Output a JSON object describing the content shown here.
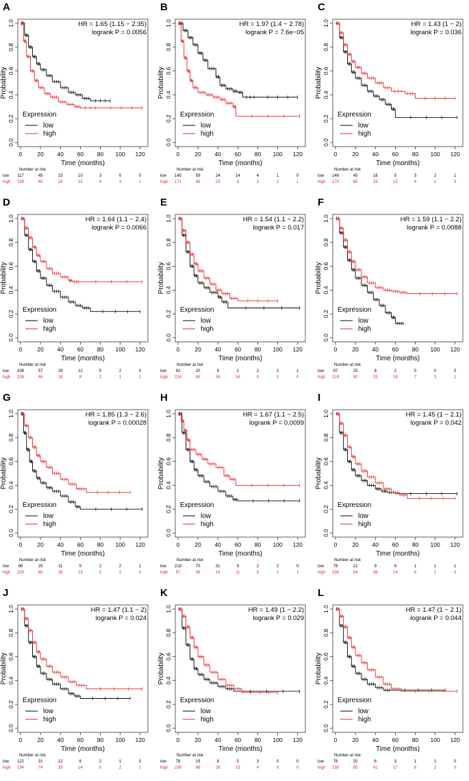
{
  "figure": {
    "axis": {
      "ylabel": "Probability",
      "xlabel": "Time (months)",
      "xticks": [
        0,
        20,
        40,
        60,
        80,
        100,
        120
      ],
      "yticks": [
        "0.0",
        "0.2",
        "0.4",
        "0.6",
        "0.8",
        "1.0"
      ],
      "xlim": [
        0,
        125
      ],
      "ylim": [
        0,
        1
      ]
    },
    "legend": {
      "title": "Expression",
      "low": "low",
      "high": "high"
    },
    "risk_title": "Number at risk",
    "colors": {
      "low": "#000000",
      "high": "#e8262a",
      "axis": "#333333"
    }
  },
  "chart_data": [
    {
      "type": "line",
      "panel": "A",
      "hr": "HR = 1.65 (1.15 − 2.35)",
      "p": "logrank P = 0.0056",
      "series": [
        {
          "name": "low",
          "x": [
            0,
            4,
            8,
            12,
            16,
            20,
            26,
            32,
            40,
            48,
            55,
            62,
            70,
            90
          ],
          "values": [
            1,
            0.9,
            0.8,
            0.72,
            0.66,
            0.61,
            0.56,
            0.51,
            0.46,
            0.42,
            0.4,
            0.37,
            0.35,
            0.35
          ]
        },
        {
          "name": "high",
          "x": [
            0,
            3,
            6,
            10,
            14,
            18,
            24,
            30,
            38,
            46,
            54,
            60,
            80,
            122
          ],
          "values": [
            1,
            0.85,
            0.72,
            0.6,
            0.52,
            0.46,
            0.41,
            0.38,
            0.34,
            0.32,
            0.3,
            0.29,
            0.29,
            0.29
          ]
        }
      ],
      "risk": {
        "low": [
          "117",
          "45",
          "23",
          "10",
          "3",
          "0",
          "0"
        ],
        "high": [
          "199",
          "60",
          "24",
          "10",
          "4",
          "3",
          "1"
        ]
      }
    },
    {
      "type": "line",
      "panel": "B",
      "hr": "HR = 1.97 (1.4 − 2.78)",
      "p": "logrank P = 7.6e−05",
      "series": [
        {
          "name": "low",
          "x": [
            0,
            5,
            10,
            15,
            20,
            25,
            30,
            38,
            42,
            48,
            55,
            60,
            65,
            80,
            120
          ],
          "values": [
            1,
            0.94,
            0.88,
            0.82,
            0.75,
            0.69,
            0.62,
            0.55,
            0.48,
            0.45,
            0.43,
            0.42,
            0.38,
            0.38,
            0.38
          ]
        },
        {
          "name": "high",
          "x": [
            0,
            3,
            6,
            9,
            12,
            15,
            20,
            28,
            35,
            42,
            48,
            55,
            58,
            122
          ],
          "values": [
            1,
            0.85,
            0.71,
            0.6,
            0.52,
            0.46,
            0.42,
            0.4,
            0.38,
            0.36,
            0.33,
            0.3,
            0.22,
            0.22
          ]
        }
      ],
      "risk": {
        "low": [
          "145",
          "59",
          "24",
          "14",
          "4",
          "1",
          "0"
        ],
        "high": [
          "171",
          "46",
          "23",
          "6",
          "3",
          "2",
          "1"
        ]
      }
    },
    {
      "type": "line",
      "panel": "C",
      "hr": "HR = 1.43 (1 − 2)",
      "p": "logrank P = 0.036",
      "series": [
        {
          "name": "low",
          "x": [
            0,
            4,
            8,
            12,
            16,
            20,
            26,
            32,
            38,
            44,
            50,
            56,
            60,
            122
          ],
          "values": [
            1,
            0.88,
            0.76,
            0.66,
            0.59,
            0.54,
            0.48,
            0.43,
            0.39,
            0.36,
            0.32,
            0.28,
            0.21,
            0.21
          ]
        },
        {
          "name": "high",
          "x": [
            0,
            4,
            8,
            12,
            16,
            20,
            26,
            32,
            40,
            48,
            56,
            70,
            80,
            120
          ],
          "values": [
            1,
            0.92,
            0.82,
            0.74,
            0.68,
            0.63,
            0.58,
            0.54,
            0.5,
            0.46,
            0.43,
            0.41,
            0.37,
            0.37
          ]
        }
      ],
      "risk": {
        "low": [
          "146",
          "45",
          "18",
          "5",
          "3",
          "2",
          "1"
        ],
        "high": [
          "170",
          "60",
          "29",
          "15",
          "4",
          "1",
          "0"
        ]
      }
    },
    {
      "type": "line",
      "panel": "D",
      "hr": "HR = 1.64 (1.1 − 2.4)",
      "p": "logrank P = 0.0066",
      "series": [
        {
          "name": "low",
          "x": [
            0,
            4,
            8,
            12,
            16,
            20,
            26,
            32,
            40,
            48,
            55,
            62,
            70,
            120
          ],
          "values": [
            1,
            0.86,
            0.74,
            0.64,
            0.56,
            0.5,
            0.44,
            0.39,
            0.34,
            0.3,
            0.27,
            0.25,
            0.22,
            0.22
          ]
        },
        {
          "name": "high",
          "x": [
            0,
            4,
            8,
            12,
            16,
            20,
            26,
            32,
            40,
            48,
            52,
            60,
            122
          ],
          "values": [
            1,
            0.92,
            0.84,
            0.76,
            0.69,
            0.64,
            0.58,
            0.54,
            0.51,
            0.48,
            0.47,
            0.47,
            0.47
          ]
        }
      ],
      "risk": {
        "low": [
          "208",
          "57",
          "29",
          "12",
          "5",
          "2",
          "0"
        ],
        "high": [
          "108",
          "48",
          "18",
          "8",
          "2",
          "1",
          "1"
        ]
      }
    },
    {
      "type": "line",
      "panel": "E",
      "hr": "HR = 1.54 (1.1 − 2.2)",
      "p": "logrank P = 0.017",
      "series": [
        {
          "name": "low",
          "x": [
            0,
            4,
            8,
            12,
            16,
            20,
            26,
            32,
            40,
            44,
            50,
            122
          ],
          "values": [
            1,
            0.86,
            0.72,
            0.6,
            0.52,
            0.46,
            0.42,
            0.38,
            0.34,
            0.3,
            0.25,
            0.25
          ]
        },
        {
          "name": "high",
          "x": [
            0,
            4,
            8,
            12,
            16,
            20,
            26,
            32,
            38,
            44,
            52,
            60,
            100
          ],
          "values": [
            1,
            0.9,
            0.8,
            0.7,
            0.62,
            0.56,
            0.5,
            0.45,
            0.4,
            0.37,
            0.33,
            0.31,
            0.31
          ]
        }
      ],
      "risk": {
        "low": [
          "92",
          "20",
          "9",
          "2",
          "2",
          "2",
          "1"
        ],
        "high": [
          "224",
          "85",
          "38",
          "16",
          "5",
          "1",
          "0"
        ]
      }
    },
    {
      "type": "line",
      "panel": "F",
      "hr": "HR = 1.59 (1.1 − 2.2)",
      "p": "logrank P = 0.0088",
      "series": [
        {
          "name": "low",
          "x": [
            0,
            4,
            8,
            12,
            16,
            20,
            26,
            32,
            38,
            44,
            50,
            56,
            60,
            68
          ],
          "values": [
            1,
            0.88,
            0.76,
            0.65,
            0.57,
            0.5,
            0.44,
            0.38,
            0.32,
            0.27,
            0.21,
            0.17,
            0.12,
            0.12
          ]
        },
        {
          "name": "high",
          "x": [
            0,
            4,
            8,
            12,
            16,
            20,
            26,
            32,
            40,
            48,
            56,
            64,
            72,
            122
          ],
          "values": [
            1,
            0.92,
            0.82,
            0.72,
            0.64,
            0.57,
            0.51,
            0.46,
            0.42,
            0.4,
            0.39,
            0.38,
            0.37,
            0.37
          ]
        }
      ],
      "risk": {
        "low": [
          "97",
          "25",
          "8",
          "2",
          "0",
          "0",
          "0"
        ],
        "high": [
          "219",
          "80",
          "29",
          "18",
          "7",
          "3",
          "1"
        ]
      }
    },
    {
      "type": "line",
      "panel": "G",
      "hr": "HR = 1.85 (1.3 − 2.6)",
      "p": "logrank P = 0.00028",
      "series": [
        {
          "name": "low",
          "x": [
            0,
            3,
            6,
            9,
            12,
            16,
            20,
            26,
            32,
            40,
            48,
            55,
            60,
            122
          ],
          "values": [
            1,
            0.84,
            0.7,
            0.6,
            0.52,
            0.46,
            0.42,
            0.38,
            0.35,
            0.31,
            0.26,
            0.22,
            0.2,
            0.2
          ]
        },
        {
          "name": "high",
          "x": [
            0,
            4,
            8,
            12,
            16,
            20,
            26,
            32,
            40,
            48,
            56,
            66,
            110
          ],
          "values": [
            1,
            0.9,
            0.8,
            0.72,
            0.65,
            0.6,
            0.55,
            0.5,
            0.45,
            0.41,
            0.37,
            0.34,
            0.34
          ]
        }
      ],
      "risk": {
        "low": [
          "96",
          "25",
          "11",
          "5",
          "2",
          "2",
          "1"
        ],
        "high": [
          "220",
          "80",
          "36",
          "15",
          "5",
          "1",
          "0"
        ]
      }
    },
    {
      "type": "line",
      "panel": "H",
      "hr": "HR = 1.67 (1.1 − 2.5)",
      "p": "logrank P = 0.0099",
      "series": [
        {
          "name": "low",
          "x": [
            0,
            4,
            8,
            12,
            16,
            20,
            26,
            32,
            40,
            48,
            55,
            60,
            122
          ],
          "values": [
            1,
            0.84,
            0.7,
            0.6,
            0.53,
            0.48,
            0.43,
            0.39,
            0.35,
            0.31,
            0.28,
            0.27,
            0.27
          ]
        },
        {
          "name": "high",
          "x": [
            0,
            3,
            6,
            9,
            12,
            18,
            24,
            30,
            38,
            46,
            52,
            58,
            122
          ],
          "values": [
            1,
            0.94,
            0.86,
            0.78,
            0.7,
            0.66,
            0.62,
            0.58,
            0.55,
            0.48,
            0.45,
            0.4,
            0.4
          ]
        }
      ],
      "risk": {
        "low": [
          "219",
          "70",
          "31",
          "9",
          "2",
          "2",
          "0"
        ],
        "high": [
          "97",
          "35",
          "16",
          "11",
          "5",
          "1",
          "1"
        ]
      }
    },
    {
      "type": "line",
      "panel": "I",
      "hr": "HR = 1.45 (1 − 2.1)",
      "p": "logrank P = 0.042",
      "series": [
        {
          "name": "low",
          "x": [
            0,
            4,
            8,
            12,
            16,
            20,
            26,
            32,
            40,
            46,
            52,
            60,
            122
          ],
          "values": [
            1,
            0.84,
            0.7,
            0.6,
            0.53,
            0.48,
            0.44,
            0.4,
            0.37,
            0.35,
            0.34,
            0.33,
            0.33
          ]
        },
        {
          "name": "high",
          "x": [
            0,
            4,
            8,
            12,
            16,
            20,
            26,
            32,
            40,
            48,
            56,
            64,
            72,
            120
          ],
          "values": [
            1,
            0.92,
            0.82,
            0.72,
            0.64,
            0.58,
            0.52,
            0.47,
            0.42,
            0.37,
            0.34,
            0.32,
            0.29,
            0.29
          ]
        }
      ],
      "risk": {
        "low": [
          "78",
          "21",
          "9",
          "6",
          "1",
          "1",
          "1"
        ],
        "high": [
          "238",
          "84",
          "38",
          "14",
          "6",
          "2",
          "0"
        ]
      }
    },
    {
      "type": "line",
      "panel": "J",
      "hr": "HR = 1.47 (1.1 − 2)",
      "p": "logrank P = 0.024",
      "series": [
        {
          "name": "low",
          "x": [
            0,
            4,
            8,
            12,
            16,
            20,
            26,
            32,
            40,
            48,
            54,
            60,
            110
          ],
          "values": [
            1,
            0.86,
            0.72,
            0.6,
            0.52,
            0.46,
            0.41,
            0.37,
            0.33,
            0.29,
            0.27,
            0.25,
            0.25
          ]
        },
        {
          "name": "high",
          "x": [
            0,
            4,
            8,
            12,
            16,
            20,
            26,
            32,
            40,
            48,
            56,
            66,
            122
          ],
          "values": [
            1,
            0.92,
            0.82,
            0.72,
            0.64,
            0.58,
            0.52,
            0.47,
            0.43,
            0.39,
            0.36,
            0.33,
            0.33
          ]
        }
      ],
      "risk": {
        "low": [
          "122",
          "31",
          "12",
          "6",
          "2",
          "1",
          "0"
        ],
        "high": [
          "194",
          "74",
          "35",
          "14",
          "5",
          "2",
          "1"
        ]
      }
    },
    {
      "type": "line",
      "panel": "K",
      "hr": "HR = 1.49 (1 − 2.2)",
      "p": "logrank P = 0.029",
      "series": [
        {
          "name": "low",
          "x": [
            0,
            4,
            8,
            12,
            16,
            20,
            26,
            32,
            40,
            48,
            56,
            122
          ],
          "values": [
            1,
            0.84,
            0.7,
            0.58,
            0.5,
            0.45,
            0.41,
            0.38,
            0.35,
            0.33,
            0.31,
            0.31
          ]
        },
        {
          "name": "high",
          "x": [
            0,
            4,
            8,
            12,
            16,
            20,
            26,
            32,
            40,
            48,
            56,
            64,
            100
          ],
          "values": [
            1,
            0.94,
            0.85,
            0.76,
            0.68,
            0.6,
            0.53,
            0.47,
            0.41,
            0.36,
            0.33,
            0.3,
            0.3
          ]
        }
      ],
      "risk": {
        "low": [
          "78",
          "19",
          "8",
          "5",
          "3",
          "0",
          "0"
        ],
        "high": [
          "238",
          "86",
          "39",
          "15",
          "4",
          "0",
          "0"
        ]
      }
    },
    {
      "type": "line",
      "panel": "L",
      "hr": "HR = 1.47 (1 − 2.1)",
      "p": "logrank P = 0.044",
      "series": [
        {
          "name": "low",
          "x": [
            0,
            4,
            8,
            12,
            16,
            20,
            26,
            32,
            40,
            48,
            56,
            110
          ],
          "values": [
            1,
            0.86,
            0.72,
            0.6,
            0.52,
            0.46,
            0.41,
            0.37,
            0.34,
            0.32,
            0.32,
            0.32
          ]
        },
        {
          "name": "high",
          "x": [
            0,
            4,
            8,
            12,
            16,
            20,
            26,
            32,
            40,
            48,
            56,
            66,
            122
          ],
          "values": [
            1,
            0.94,
            0.85,
            0.76,
            0.68,
            0.61,
            0.55,
            0.49,
            0.43,
            0.37,
            0.33,
            0.31,
            0.31
          ]
        }
      ],
      "risk": {
        "low": [
          "78",
          "20",
          "6",
          "3",
          "1",
          "1",
          "0"
        ],
        "high": [
          "238",
          "85",
          "41",
          "17",
          "6",
          "2",
          "0"
        ]
      }
    }
  ]
}
